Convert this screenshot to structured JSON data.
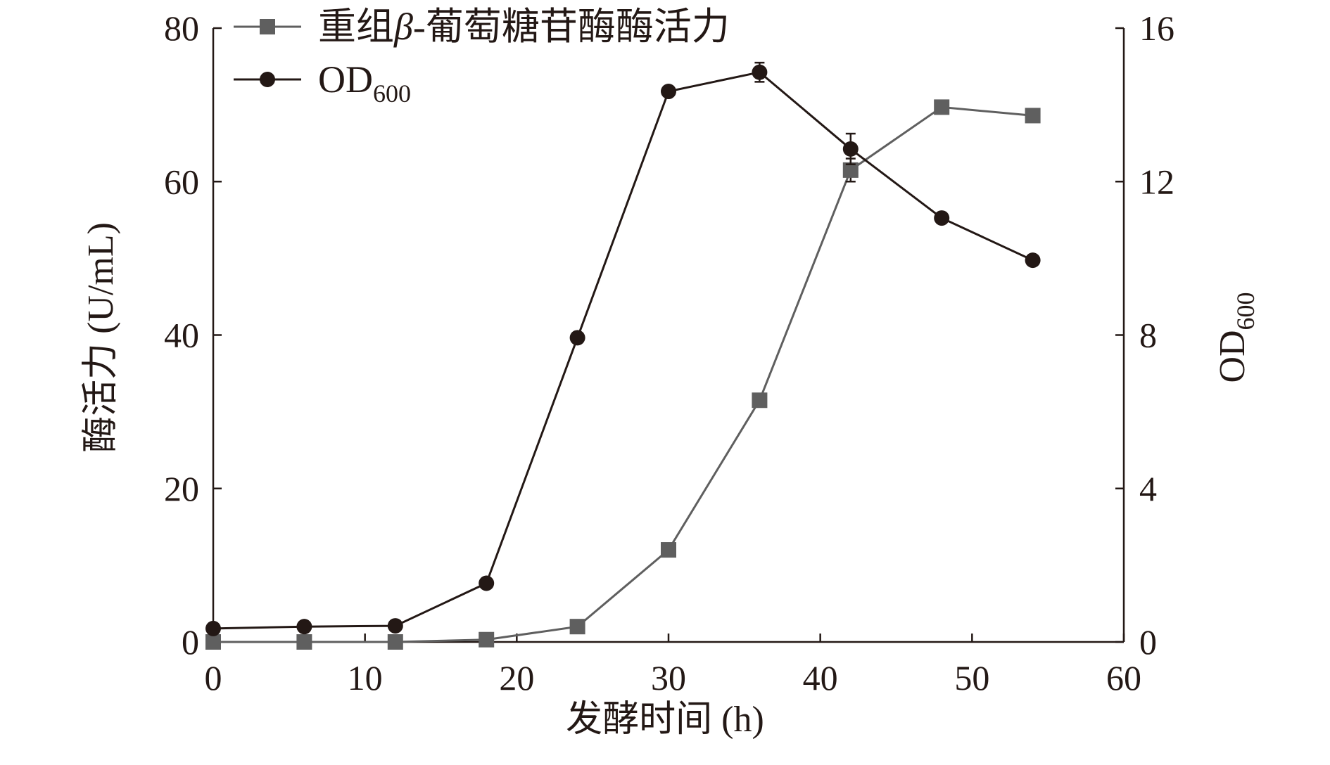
{
  "chart_data": {
    "type": "line",
    "x": [
      0,
      6,
      12,
      18,
      24,
      30,
      36,
      42,
      48,
      54
    ],
    "xlabel": "发酵时间 (h)",
    "xlim": [
      0,
      60
    ],
    "xticks": [
      "0",
      "10",
      "20",
      "30",
      "40",
      "50",
      "60"
    ],
    "ylabel": "酶活力 (U/mL)",
    "ylim": [
      0,
      80
    ],
    "yticks": [
      "0",
      "20",
      "40",
      "60",
      "80"
    ],
    "y2label": {
      "main": "OD",
      "sub": "600"
    },
    "y2lim": [
      0,
      16
    ],
    "y2ticks": [
      "0",
      "4",
      "8",
      "12",
      "16"
    ],
    "grid": false,
    "legend_position": "top-left",
    "series": [
      {
        "name": "重组β-葡萄糖苷酶酶活力",
        "name_parts": {
          "prefix": "重组",
          "italic": "β",
          "suffix": "-葡萄糖苷酶酶活力"
        },
        "axis": "left",
        "marker": "square",
        "color": "#5f5f5f",
        "values": [
          0,
          0,
          0,
          0.3,
          2,
          12,
          31.5,
          61.5,
          69.7,
          68.6
        ],
        "error": [
          0,
          0,
          0,
          0,
          0,
          0,
          0,
          1.5,
          0,
          0
        ]
      },
      {
        "name": "OD600",
        "name_parts": {
          "main": "OD",
          "sub": "600"
        },
        "axis": "right",
        "marker": "circle",
        "color": "#231815",
        "values": [
          0.35,
          0.4,
          0.42,
          1.53,
          7.93,
          14.35,
          14.85,
          12.85,
          11.05,
          9.95
        ],
        "error": [
          0,
          0,
          0,
          0,
          0,
          0,
          0.25,
          0.4,
          0,
          0
        ]
      }
    ]
  }
}
